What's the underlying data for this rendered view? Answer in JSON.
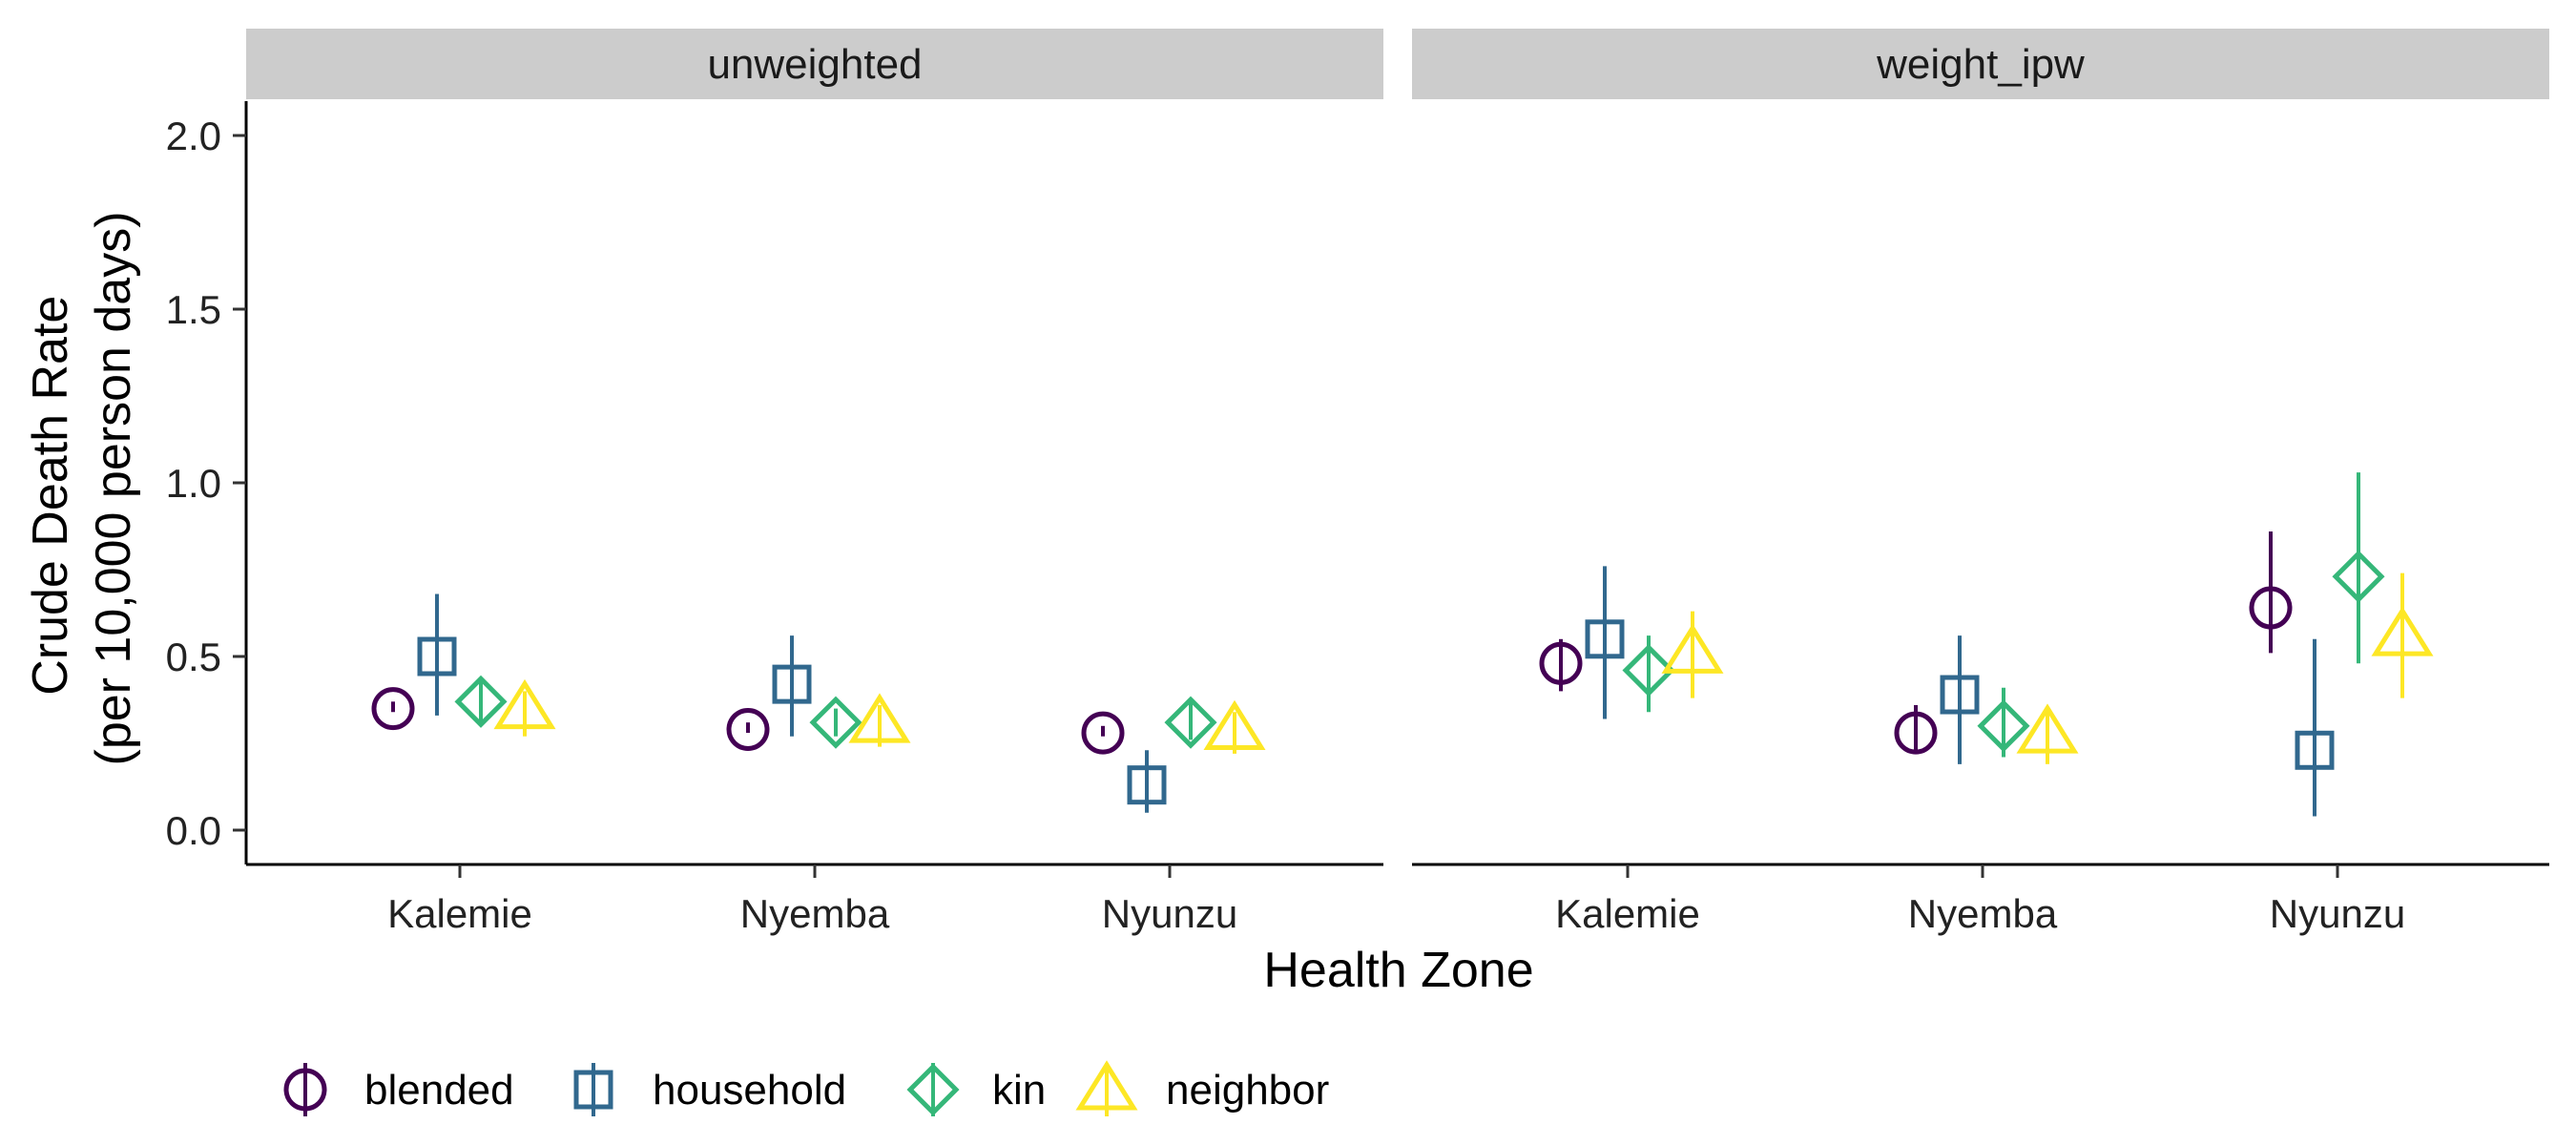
{
  "chart_data": {
    "type": "scatter",
    "subtype": "point-range (estimate with error bars), faceted",
    "facets": [
      "unweighted",
      "weight_ipw"
    ],
    "categories": [
      "Kalemie",
      "Nyemba",
      "Nyunzu"
    ],
    "xlabel": "Health Zone",
    "ylabel_lines": [
      "Crude Death Rate",
      "(per 10,000 person days)"
    ],
    "ylim": [
      0,
      2.0
    ],
    "yticks": [
      0.0,
      0.5,
      1.0,
      1.5,
      2.0
    ],
    "ytick_labels": [
      "0.0",
      "0.5",
      "1.0",
      "1.5",
      "2.0"
    ],
    "grid": false,
    "legend": {
      "position": "bottom-left",
      "items": [
        "blended",
        "household",
        "kin",
        "neighbor"
      ]
    },
    "series": [
      {
        "name": "blended",
        "shape": "circle",
        "color": "#440154",
        "points": {
          "unweighted": [
            {
              "x": "Kalemie",
              "y": 0.35,
              "low": 0.34,
              "high": 0.37
            },
            {
              "x": "Nyemba",
              "y": 0.29,
              "low": 0.28,
              "high": 0.31
            },
            {
              "x": "Nyunzu",
              "y": 0.28,
              "low": 0.27,
              "high": 0.3
            }
          ],
          "weight_ipw": [
            {
              "x": "Kalemie",
              "y": 0.48,
              "low": 0.4,
              "high": 0.55
            },
            {
              "x": "Nyemba",
              "y": 0.28,
              "low": 0.23,
              "high": 0.36
            },
            {
              "x": "Nyunzu",
              "y": 0.64,
              "low": 0.51,
              "high": 0.86
            }
          ]
        }
      },
      {
        "name": "household",
        "shape": "square",
        "color": "#31688e",
        "points": {
          "unweighted": [
            {
              "x": "Kalemie",
              "y": 0.5,
              "low": 0.33,
              "high": 0.68
            },
            {
              "x": "Nyemba",
              "y": 0.42,
              "low": 0.27,
              "high": 0.56
            },
            {
              "x": "Nyunzu",
              "y": 0.13,
              "low": 0.05,
              "high": 0.23
            }
          ],
          "weight_ipw": [
            {
              "x": "Kalemie",
              "y": 0.55,
              "low": 0.32,
              "high": 0.76
            },
            {
              "x": "Nyemba",
              "y": 0.39,
              "low": 0.19,
              "high": 0.56
            },
            {
              "x": "Nyunzu",
              "y": 0.23,
              "low": 0.04,
              "high": 0.55
            }
          ]
        }
      },
      {
        "name": "kin",
        "shape": "diamond",
        "color": "#35b779",
        "points": {
          "unweighted": [
            {
              "x": "Kalemie",
              "y": 0.37,
              "low": 0.3,
              "high": 0.43
            },
            {
              "x": "Nyemba",
              "y": 0.31,
              "low": 0.27,
              "high": 0.35
            },
            {
              "x": "Nyunzu",
              "y": 0.31,
              "low": 0.26,
              "high": 0.37
            }
          ],
          "weight_ipw": [
            {
              "x": "Kalemie",
              "y": 0.46,
              "low": 0.34,
              "high": 0.56
            },
            {
              "x": "Nyemba",
              "y": 0.3,
              "low": 0.21,
              "high": 0.41
            },
            {
              "x": "Nyunzu",
              "y": 0.73,
              "low": 0.48,
              "high": 1.03
            }
          ]
        }
      },
      {
        "name": "neighbor",
        "shape": "triangle",
        "color": "#fde725",
        "points": {
          "unweighted": [
            {
              "x": "Kalemie",
              "y": 0.35,
              "low": 0.27,
              "high": 0.4
            },
            {
              "x": "Nyemba",
              "y": 0.31,
              "low": 0.24,
              "high": 0.36
            },
            {
              "x": "Nyunzu",
              "y": 0.29,
              "low": 0.22,
              "high": 0.34
            }
          ],
          "weight_ipw": [
            {
              "x": "Kalemie",
              "y": 0.51,
              "low": 0.38,
              "high": 0.63
            },
            {
              "x": "Nyemba",
              "y": 0.28,
              "low": 0.19,
              "high": 0.35
            },
            {
              "x": "Nyunzu",
              "y": 0.56,
              "low": 0.38,
              "high": 0.74
            }
          ]
        }
      }
    ],
    "facet_strip_color": "#cccccc"
  }
}
